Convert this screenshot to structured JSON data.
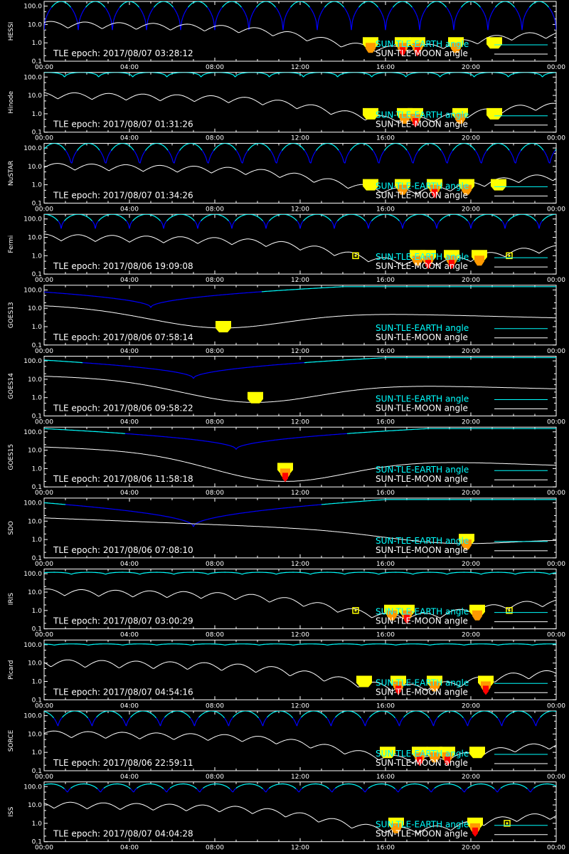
{
  "colors": {
    "background": "#000000",
    "earth_angle": "#00ffff",
    "earth_angle_low": "#0000ff",
    "moon_angle": "#ffffff",
    "axis": "#ffffff",
    "event_low": "#ffff00",
    "event_mid": "#ff9900",
    "event_high": "#ff0000"
  },
  "legend": {
    "earth": "SUN-TLE-EARTH angle",
    "moon": "SUN-TLE-MOON angle"
  },
  "epoch_prefix": "TLE epoch: ",
  "chart_data": {
    "type": "line",
    "xlim": [
      "00:00",
      "24:00"
    ],
    "ylim": [
      0.1,
      180
    ],
    "yscale": "log",
    "x_ticks": [
      "00:00",
      "04:00",
      "08:00",
      "12:00",
      "16:00",
      "20:00",
      "00:00"
    ],
    "y_ticks": [
      "100.0",
      "10.0",
      "1.0",
      "0.1"
    ],
    "panels": [
      {
        "satellite": "HESSI",
        "epoch": "2017/08/07 03:28:12",
        "earth": {
          "kind": "orbit",
          "period_h": 1.6,
          "top": 180,
          "bottom": 5,
          "phase": 0
        },
        "moon": {
          "start": 10,
          "end": 3,
          "dip_h": 16.5,
          "dip_val": 0.45,
          "osc": 0.35,
          "period_h": 1.6,
          "phase": 0.3
        },
        "events": [
          {
            "h": 15.3,
            "level": 2
          },
          {
            "h": 16.8,
            "level": 3
          },
          {
            "h": 17.5,
            "level": 3
          },
          {
            "h": 19.3,
            "level": 2
          },
          {
            "h": 21.1,
            "level": 1
          }
        ]
      },
      {
        "satellite": "Hinode",
        "epoch": "2017/08/07 01:31:26",
        "earth": {
          "kind": "flat_periodic",
          "period_h": 1.6,
          "top": 180,
          "bottom": 80,
          "phase": 0.4
        },
        "moon": {
          "start": 10,
          "end": 3,
          "dip_h": 17,
          "dip_val": 0.45,
          "osc": 0.35,
          "period_h": 1.6,
          "phase": 0.6
        },
        "events": [
          {
            "h": 15.3,
            "level": 1
          },
          {
            "h": 16.9,
            "level": 2
          },
          {
            "h": 17.4,
            "level": 3
          },
          {
            "h": 19.5,
            "level": 2
          },
          {
            "h": 21.1,
            "level": 1
          }
        ]
      },
      {
        "satellite": "NuSTAR",
        "epoch": "2017/08/07 01:34:26",
        "earth": {
          "kind": "orbit",
          "period_h": 1.6,
          "top": 180,
          "bottom": 8,
          "phase": 0.2
        },
        "moon": {
          "start": 10,
          "end": 3,
          "dip_h": 17,
          "dip_val": 0.45,
          "osc": 0.35,
          "period_h": 1.6,
          "phase": 0.1
        },
        "events": [
          {
            "h": 15.3,
            "level": 1
          },
          {
            "h": 16.8,
            "level": 2
          },
          {
            "h": 18.3,
            "level": 3
          },
          {
            "h": 19.8,
            "level": 2
          },
          {
            "h": 21.3,
            "level": 1
          }
        ]
      },
      {
        "satellite": "Fermi",
        "epoch": "2017/08/06 19:09:08",
        "earth": {
          "kind": "orbit",
          "period_h": 1.6,
          "top": 180,
          "bottom": 30,
          "phase": 0.5
        },
        "moon": {
          "start": 10,
          "end": 3,
          "dip_h": 17.5,
          "dip_val": 0.4,
          "osc": 0.35,
          "period_h": 1.6,
          "phase": 0.5
        },
        "events": [
          {
            "h": 14.6,
            "level": 0
          },
          {
            "h": 17.5,
            "level": 2
          },
          {
            "h": 18.0,
            "level": 3
          },
          {
            "h": 19.1,
            "level": 3
          },
          {
            "h": 20.4,
            "level": 2
          },
          {
            "h": 21.8,
            "level": 0
          }
        ]
      },
      {
        "satellite": "GOES13",
        "epoch": "2017/08/06 07:58:14",
        "earth": {
          "kind": "geo",
          "min_h": 5,
          "min_val": 11
        },
        "moon": {
          "start": 15,
          "end": 3,
          "dip_h": 8.4,
          "dip_val": 0.85,
          "osc": 0,
          "period_h": 1,
          "phase": 0
        },
        "events": [
          {
            "h": 8.4,
            "level": 1
          }
        ]
      },
      {
        "satellite": "GOES14",
        "epoch": "2017/08/06 09:58:22",
        "earth": {
          "kind": "geo",
          "min_h": 7,
          "min_val": 11
        },
        "moon": {
          "start": 15,
          "end": 3,
          "dip_h": 9.9,
          "dip_val": 0.55,
          "osc": 0,
          "period_h": 1,
          "phase": 0
        },
        "events": [
          {
            "h": 9.9,
            "level": 1
          }
        ]
      },
      {
        "satellite": "GOES15",
        "epoch": "2017/08/06 11:58:18",
        "earth": {
          "kind": "geo",
          "min_h": 9,
          "min_val": 11
        },
        "moon": {
          "start": 15,
          "end": 1.5,
          "dip_h": 11.3,
          "dip_val": 0.2,
          "osc": 0,
          "period_h": 1,
          "phase": 0
        },
        "events": [
          {
            "h": 11.3,
            "level": 3
          }
        ]
      },
      {
        "satellite": "SDO",
        "epoch": "2017/08/06 07:08:10",
        "earth": {
          "kind": "geo",
          "min_h": 7,
          "min_val": 5
        },
        "moon": {
          "start": 15,
          "end": 1.2,
          "dip_h": 19.8,
          "dip_val": 0.6,
          "osc": 0,
          "period_h": 1,
          "phase": 0
        },
        "events": [
          {
            "h": 19.8,
            "level": 2
          }
        ]
      },
      {
        "satellite": "IRIS",
        "epoch": "2017/08/07 03:00:29",
        "earth": {
          "kind": "flat_periodic",
          "period_h": 1.6,
          "top": 120,
          "bottom": 85,
          "phase": 0.2
        },
        "moon": {
          "start": 10,
          "end": 3,
          "dip_h": 17,
          "dip_val": 0.45,
          "osc": 0.35,
          "period_h": 1.6,
          "phase": 0.4
        },
        "events": [
          {
            "h": 14.6,
            "level": 0
          },
          {
            "h": 16.3,
            "level": 2
          },
          {
            "h": 17.0,
            "level": 3
          },
          {
            "h": 20.3,
            "level": 2
          },
          {
            "h": 21.8,
            "level": 0
          }
        ]
      },
      {
        "satellite": "Picard",
        "epoch": "2017/08/07 04:54:16",
        "earth": {
          "kind": "flat_periodic",
          "period_h": 1.6,
          "top": 110,
          "bottom": 90,
          "phase": 0.7
        },
        "moon": {
          "start": 10,
          "end": 3,
          "dip_h": 17,
          "dip_val": 0.45,
          "osc": 0.4,
          "period_h": 1.6,
          "phase": 0.8
        },
        "events": [
          {
            "h": 15.0,
            "level": 1
          },
          {
            "h": 16.6,
            "level": 3
          },
          {
            "h": 18.3,
            "level": 2
          },
          {
            "h": 20.7,
            "level": 3
          }
        ]
      },
      {
        "satellite": "SORCE",
        "epoch": "2017/08/06 22:59:11",
        "earth": {
          "kind": "orbit",
          "period_h": 1.6,
          "top": 180,
          "bottom": 20,
          "phase": 0.6
        },
        "moon": {
          "start": 10,
          "end": 3,
          "dip_h": 17.5,
          "dip_val": 0.4,
          "osc": 0.35,
          "period_h": 1.6,
          "phase": 0.2
        },
        "events": [
          {
            "h": 16.1,
            "level": 1
          },
          {
            "h": 17.6,
            "level": 3
          },
          {
            "h": 18.3,
            "level": 2
          },
          {
            "h": 18.9,
            "level": 3
          },
          {
            "h": 20.3,
            "level": 1
          }
        ]
      },
      {
        "satellite": "ISS",
        "epoch": "2017/08/07 04:04:28",
        "earth": {
          "kind": "orbit",
          "period_h": 1.55,
          "top": 140,
          "bottom": 40,
          "phase": 0.3
        },
        "moon": {
          "start": 10,
          "end": 3,
          "dip_h": 17,
          "dip_val": 0.4,
          "osc": 0.35,
          "period_h": 1.55,
          "phase": 0.7
        },
        "events": [
          {
            "h": 16.5,
            "level": 2
          },
          {
            "h": 20.2,
            "level": 3
          },
          {
            "h": 21.7,
            "level": 0
          }
        ]
      }
    ]
  }
}
